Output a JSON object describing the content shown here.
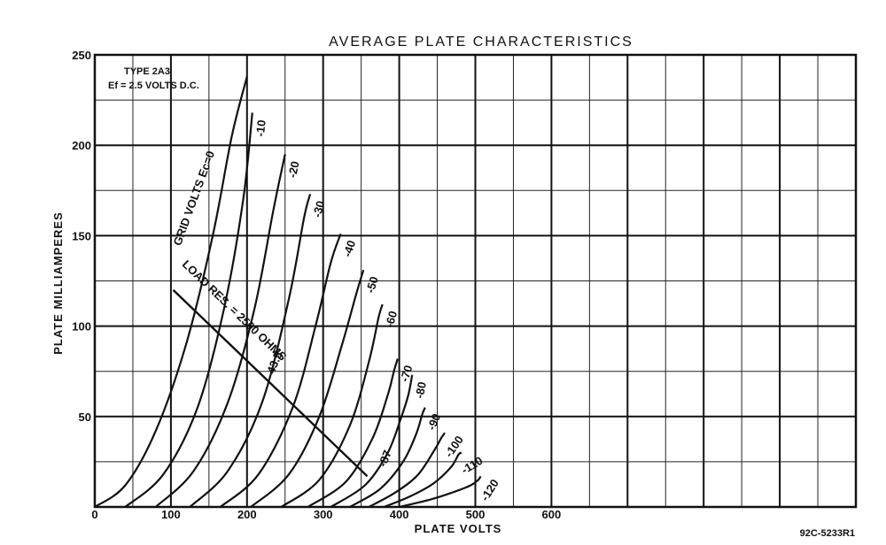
{
  "chart_data": {
    "type": "line",
    "title": "AVERAGE PLATE CHARACTERISTICS",
    "xlabel": "PLATE VOLTS",
    "ylabel": "PLATE MILLIAMPERES",
    "xlim": [
      0,
      1000
    ],
    "ylim": [
      0,
      250
    ],
    "grid": true,
    "x_ticks": [
      "0",
      "100",
      "200",
      "300",
      "400",
      "500",
      "600"
    ],
    "y_ticks": [
      "50",
      "100",
      "150",
      "200",
      "250"
    ],
    "annotations": {
      "type_label": "TYPE 2A3",
      "filament_label": "Ef = 2.5 VOLTS D.C.",
      "grid_volts_label": "GRID VOLTS Ec=0",
      "load_label": "LOAD RES. = 2500 OHMS",
      "figure_code": "92C-5233R1"
    },
    "series": [
      {
        "name": "0",
        "points": [
          [
            0,
            0
          ],
          [
            40,
            12
          ],
          [
            80,
            42
          ],
          [
            120,
            90
          ],
          [
            155,
            150
          ],
          [
            180,
            205
          ],
          [
            200,
            238
          ]
        ]
      },
      {
        "name": "-10",
        "points": [
          [
            40,
            0
          ],
          [
            90,
            18
          ],
          [
            135,
            55
          ],
          [
            170,
            110
          ],
          [
            195,
            170
          ],
          [
            207,
            218
          ]
        ]
      },
      {
        "name": "-20",
        "points": [
          [
            80,
            0
          ],
          [
            130,
            20
          ],
          [
            175,
            58
          ],
          [
            210,
            110
          ],
          [
            235,
            165
          ],
          [
            250,
            195
          ]
        ]
      },
      {
        "name": "-30",
        "points": [
          [
            125,
            0
          ],
          [
            175,
            20
          ],
          [
            220,
            58
          ],
          [
            255,
            115
          ],
          [
            275,
            160
          ],
          [
            283,
            173
          ]
        ]
      },
      {
        "name": "-40",
        "points": [
          [
            165,
            0
          ],
          [
            215,
            18
          ],
          [
            260,
            55
          ],
          [
            290,
            100
          ],
          [
            310,
            135
          ],
          [
            323,
            151
          ]
        ]
      },
      {
        "name": "-50",
        "points": [
          [
            205,
            0
          ],
          [
            255,
            18
          ],
          [
            295,
            50
          ],
          [
            325,
            90
          ],
          [
            345,
            120
          ],
          [
            353,
            131
          ]
        ]
      },
      {
        "name": "-60",
        "points": [
          [
            245,
            0
          ],
          [
            295,
            15
          ],
          [
            335,
            45
          ],
          [
            360,
            80
          ],
          [
            373,
            105
          ],
          [
            378,
            112
          ]
        ]
      },
      {
        "name": "-70",
        "points": [
          [
            280,
            0
          ],
          [
            330,
            14
          ],
          [
            365,
            38
          ],
          [
            385,
            62
          ],
          [
            393,
            75
          ],
          [
            398,
            82
          ]
        ]
      },
      {
        "name": "-80",
        "points": [
          [
            310,
            0
          ],
          [
            355,
            12
          ],
          [
            385,
            30
          ],
          [
            403,
            50
          ],
          [
            412,
            62
          ],
          [
            417,
            73
          ]
        ]
      },
      {
        "name": "-90",
        "points": [
          [
            335,
            0
          ],
          [
            375,
            10
          ],
          [
            405,
            25
          ],
          [
            422,
            40
          ],
          [
            430,
            51
          ],
          [
            434,
            55
          ]
        ]
      },
      {
        "name": "-100",
        "points": [
          [
            360,
            0
          ],
          [
            395,
            8
          ],
          [
            425,
            18
          ],
          [
            447,
            32
          ],
          [
            455,
            38
          ],
          [
            460,
            41
          ]
        ]
      },
      {
        "name": "-110",
        "points": [
          [
            380,
            0
          ],
          [
            415,
            6
          ],
          [
            445,
            13
          ],
          [
            468,
            22
          ],
          [
            478,
            29
          ],
          [
            482,
            30
          ]
        ]
      },
      {
        "name": "-120",
        "points": [
          [
            400,
            0
          ],
          [
            440,
            4
          ],
          [
            470,
            8
          ],
          [
            494,
            12
          ],
          [
            504,
            15
          ],
          [
            507,
            17
          ]
        ]
      }
    ],
    "extra_labels": [
      "-43.5",
      "-87"
    ],
    "load_line": [
      [
        103,
        120
      ],
      [
        358,
        17
      ]
    ]
  }
}
